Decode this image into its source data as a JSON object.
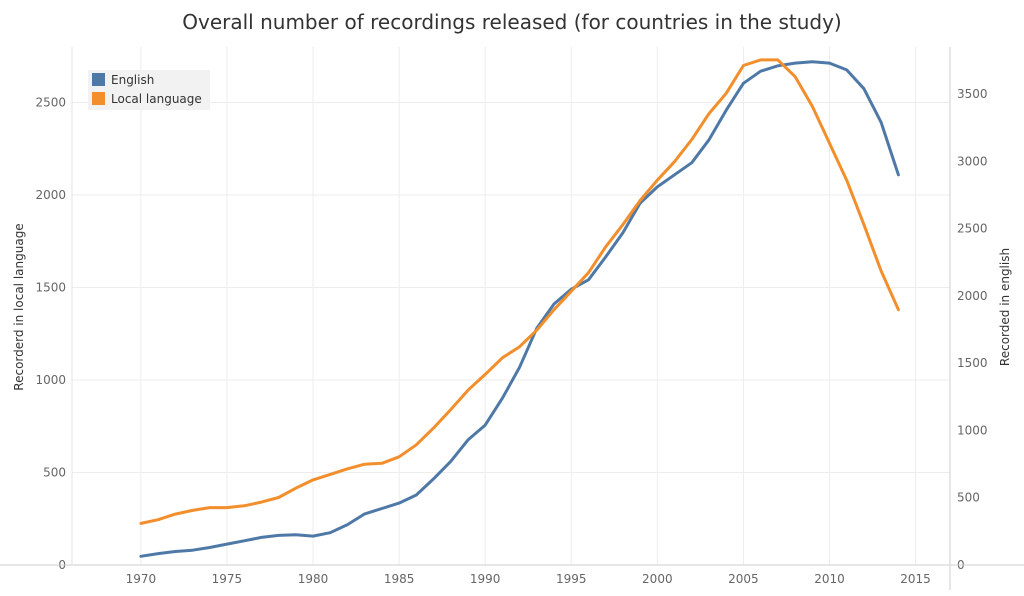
{
  "chart_data": {
    "type": "line",
    "title": "Overall number of recordings released (for countries in the study)",
    "xlabel": "",
    "ylabel_left": "Recorderd in local language",
    "ylabel_right": "Recorded in english",
    "xlim": [
      1966,
      2017
    ],
    "x_ticks": [
      1970,
      1975,
      1980,
      1985,
      1990,
      1995,
      2000,
      2005,
      2010,
      2015
    ],
    "ylim_left": [
      0,
      2800
    ],
    "y_ticks_left": [
      0,
      500,
      1000,
      1500,
      2000,
      2500
    ],
    "ylim_right": [
      0,
      3850
    ],
    "y_ticks_right": [
      0,
      500,
      1000,
      1500,
      2000,
      2500,
      3000,
      3500
    ],
    "grid": true,
    "legend_position": "top-left",
    "x": [
      1970,
      1971,
      1972,
      1973,
      1974,
      1975,
      1976,
      1977,
      1978,
      1979,
      1980,
      1981,
      1982,
      1983,
      1984,
      1985,
      1986,
      1987,
      1988,
      1989,
      1990,
      1991,
      1992,
      1993,
      1994,
      1995,
      1996,
      1997,
      1998,
      1999,
      2000,
      2001,
      2002,
      2003,
      2004,
      2005,
      2006,
      2007,
      2008,
      2009,
      2010,
      2011,
      2012,
      2013,
      2014
    ],
    "series": [
      {
        "name": "English",
        "axis": "right",
        "color": "#4e79a7",
        "values": [
          65,
          85,
          100,
          110,
          130,
          155,
          180,
          205,
          220,
          225,
          215,
          240,
          300,
          380,
          420,
          460,
          520,
          640,
          770,
          930,
          1040,
          1240,
          1470,
          1760,
          1940,
          2050,
          2120,
          2290,
          2470,
          2690,
          2810,
          2900,
          2990,
          3160,
          3380,
          3580,
          3670,
          3710,
          3730,
          3740,
          3730,
          3680,
          3540,
          3290,
          2900
        ]
      },
      {
        "name": "Local language",
        "axis": "left",
        "color": "#f28e2b",
        "values": [
          225,
          245,
          275,
          295,
          310,
          310,
          320,
          340,
          365,
          415,
          460,
          490,
          520,
          545,
          550,
          585,
          650,
          740,
          840,
          945,
          1030,
          1120,
          1180,
          1270,
          1380,
          1480,
          1580,
          1720,
          1840,
          1970,
          2080,
          2180,
          2300,
          2440,
          2550,
          2700,
          2730,
          2730,
          2640,
          2480,
          2280,
          2080,
          1840,
          1590,
          1380
        ]
      }
    ]
  }
}
